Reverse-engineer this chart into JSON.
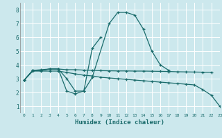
{
  "xlabel": "Humidex (Indice chaleur)",
  "bg_color": "#cce8ed",
  "line_color": "#1a6b6b",
  "grid_color": "#ffffff",
  "xlim": [
    -0.5,
    23
  ],
  "ylim": [
    0.5,
    8.5
  ],
  "yticks": [
    1,
    2,
    3,
    4,
    5,
    6,
    7,
    8
  ],
  "xtick_labels": [
    "0",
    "1",
    "2",
    "3",
    "4",
    "5",
    "6",
    "7",
    "8",
    "9",
    "10",
    "11",
    "12",
    "13",
    "14",
    "15",
    "16",
    "17",
    "18",
    "19",
    "20",
    "21",
    "22",
    "23"
  ],
  "series": [
    {
      "x": [
        0,
        1,
        2,
        3,
        4,
        5,
        6,
        7,
        8,
        10,
        11,
        12,
        13,
        14,
        15,
        16,
        17
      ],
      "y": [
        2.9,
        3.6,
        3.6,
        3.7,
        3.7,
        2.1,
        1.9,
        2.1,
        3.1,
        7.0,
        7.8,
        7.8,
        7.6,
        6.6,
        5.0,
        4.0,
        3.6
      ]
    },
    {
      "x": [
        0,
        1,
        2,
        3,
        4,
        5,
        6,
        7,
        8,
        9,
        10,
        11,
        12,
        13,
        14,
        15,
        16,
        17,
        18,
        19,
        20,
        21,
        22
      ],
      "y": [
        2.9,
        3.6,
        3.6,
        3.7,
        3.7,
        3.65,
        3.65,
        3.62,
        3.6,
        3.58,
        3.57,
        3.56,
        3.56,
        3.55,
        3.55,
        3.54,
        3.53,
        3.52,
        3.5,
        3.49,
        3.48,
        3.47,
        3.46
      ]
    },
    {
      "x": [
        0,
        1,
        2,
        3,
        4,
        5,
        6,
        7,
        8,
        9,
        10,
        11,
        12,
        13,
        14,
        15,
        16,
        17,
        18,
        19,
        20,
        21,
        22,
        23
      ],
      "y": [
        2.9,
        3.55,
        3.55,
        3.55,
        3.55,
        3.45,
        3.35,
        3.25,
        3.2,
        3.1,
        3.05,
        3.0,
        2.95,
        2.9,
        2.85,
        2.8,
        2.75,
        2.7,
        2.65,
        2.6,
        2.55,
        2.2,
        1.8,
        1.0
      ]
    },
    {
      "x": [
        0,
        1,
        2,
        3,
        4,
        5,
        6,
        7,
        8,
        9
      ],
      "y": [
        2.9,
        3.6,
        3.65,
        3.7,
        3.7,
        3.0,
        2.1,
        2.1,
        5.2,
        6.0
      ]
    }
  ]
}
